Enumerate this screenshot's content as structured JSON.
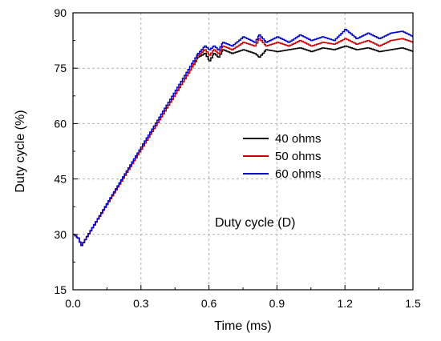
{
  "chart_data": {
    "type": "line",
    "title": "",
    "xlabel": "Time (ms)",
    "ylabel": "Duty cycle (%)",
    "xlim": [
      0,
      1.5
    ],
    "ylim": [
      15,
      90
    ],
    "x_ticks": [
      "0.0",
      "0.3",
      "0.6",
      "0.9",
      "1.2",
      "1.5"
    ],
    "y_ticks": [
      "15",
      "30",
      "45",
      "60",
      "75",
      "90"
    ],
    "grid": true,
    "legend_position": "center-right",
    "annotation": "Duty cycle (D)",
    "series": [
      {
        "name": "40 ohms",
        "color": "#000000",
        "x": [
          0,
          0.02,
          0.035,
          0.53,
          0.55,
          0.58,
          0.6,
          0.62,
          0.64,
          0.66,
          0.7,
          0.75,
          0.8,
          0.82,
          0.85,
          0.9,
          0.95,
          1.0,
          1.05,
          1.1,
          1.15,
          1.2,
          1.25,
          1.3,
          1.35,
          1.4,
          1.45,
          1.5
        ],
        "y": [
          30,
          29,
          27,
          76,
          78,
          79,
          77,
          79,
          78,
          80,
          79,
          80,
          79,
          78,
          80,
          79.5,
          80,
          80.5,
          79.5,
          80.5,
          80,
          81,
          80,
          80.5,
          79.5,
          80,
          80.5,
          79.5
        ]
      },
      {
        "name": "50 ohms",
        "color": "#cc0000",
        "x": [
          0,
          0.02,
          0.035,
          0.53,
          0.55,
          0.58,
          0.6,
          0.62,
          0.64,
          0.66,
          0.7,
          0.75,
          0.8,
          0.82,
          0.85,
          0.9,
          0.95,
          1.0,
          1.05,
          1.1,
          1.15,
          1.2,
          1.25,
          1.3,
          1.35,
          1.4,
          1.45,
          1.5
        ],
        "y": [
          30,
          29,
          27,
          76,
          78.5,
          80,
          78.5,
          80,
          79,
          81,
          80,
          82,
          81,
          83,
          81,
          82,
          81,
          82.5,
          81,
          82,
          81.5,
          83,
          81.5,
          82.5,
          81,
          82.5,
          83,
          82
        ]
      },
      {
        "name": "60 ohms",
        "color": "#0000cc",
        "x": [
          0,
          0.02,
          0.035,
          0.53,
          0.55,
          0.58,
          0.6,
          0.62,
          0.64,
          0.66,
          0.7,
          0.75,
          0.8,
          0.82,
          0.85,
          0.9,
          0.95,
          1.0,
          1.05,
          1.1,
          1.15,
          1.2,
          1.25,
          1.3,
          1.35,
          1.4,
          1.45,
          1.5
        ],
        "y": [
          30,
          29,
          27,
          77,
          79,
          81,
          80,
          81,
          80,
          82,
          81,
          83.5,
          82,
          84,
          82,
          83.5,
          82,
          84,
          82.5,
          83.5,
          82.5,
          85.5,
          83,
          84.5,
          83,
          84.5,
          85,
          83.5
        ]
      }
    ]
  }
}
